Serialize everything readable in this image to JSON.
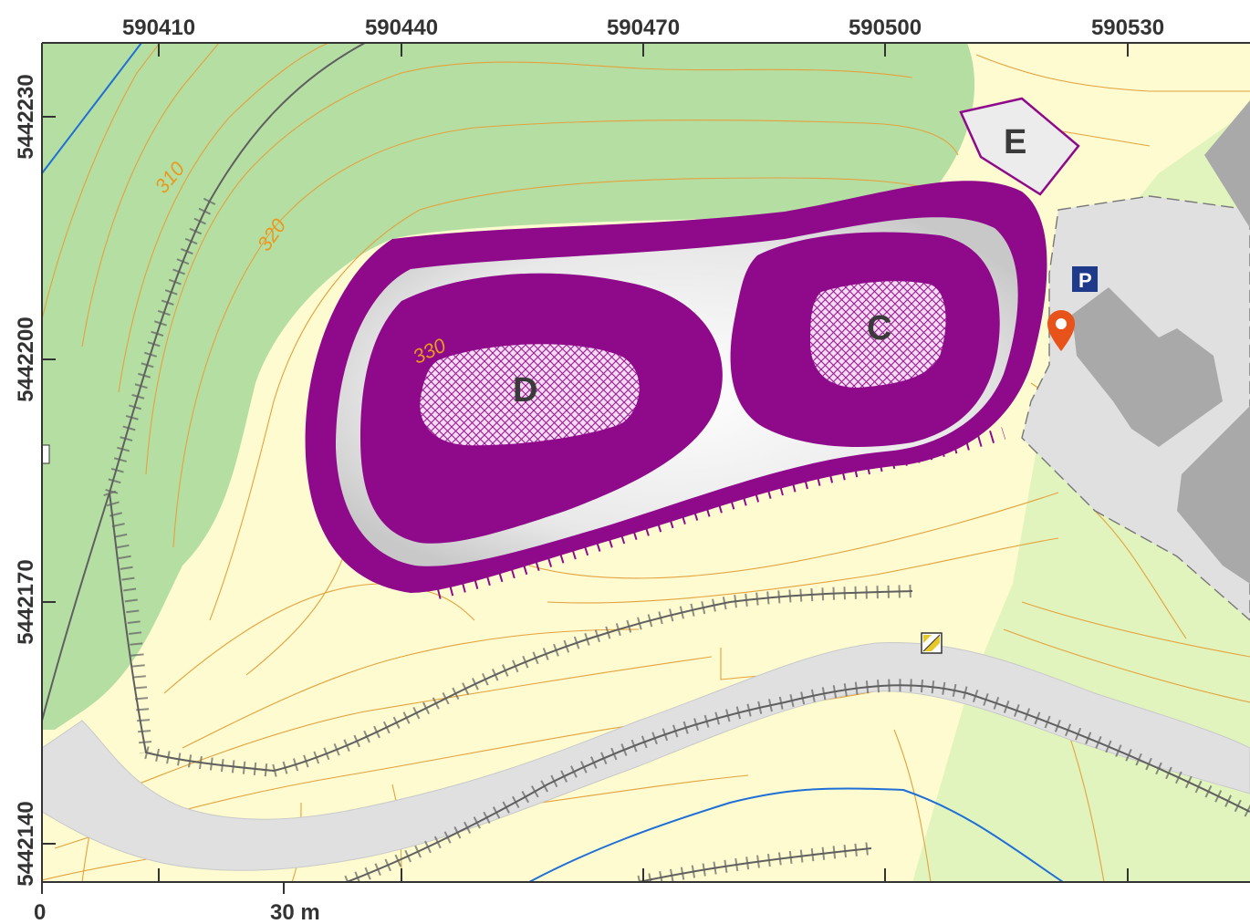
{
  "map": {
    "x_ticks": [
      "590410",
      "590440",
      "590470",
      "590500",
      "590530"
    ],
    "y_ticks": [
      "5442230",
      "5442200",
      "5442170",
      "5442140"
    ],
    "contour_labels": [
      "310",
      "320",
      "330"
    ],
    "sites": [
      "D",
      "C",
      "E"
    ],
    "parking_label": "P",
    "scale_bar": {
      "start_label": "0",
      "end_label": "30 m"
    },
    "colors": {
      "forest": "#b5dea3",
      "open_land": "#fdfbcf",
      "urban": "#e2f4bd",
      "road": "#e0e0e0",
      "building": "#a9a9a9",
      "contour": "#e3a23d",
      "water": "#1f6fd6",
      "site_outline": "#8e0a8a",
      "poi_marker": "#e8521b",
      "parking": "#1f3a8a"
    },
    "icons": [
      "location-pin-icon",
      "parking-icon",
      "signpost-icon"
    ]
  }
}
